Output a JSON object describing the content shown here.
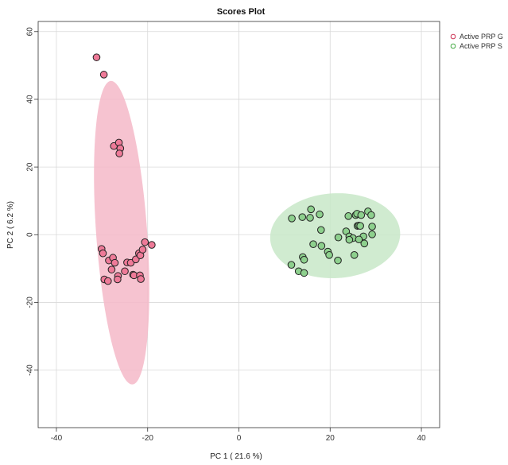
{
  "chart_data": {
    "type": "scatter",
    "title": "Scores Plot",
    "xlabel": "PC 1 ( 21.6 %)",
    "ylabel": "PC 2 ( 6.2 %)",
    "xlim": [
      -44,
      44
    ],
    "ylim": [
      -57,
      63
    ],
    "x_ticks": [
      -40,
      -20,
      0,
      20,
      40
    ],
    "y_ticks": [
      -40,
      -20,
      0,
      20,
      40,
      60
    ],
    "grid": true,
    "legend_position": "top-right",
    "series": [
      {
        "name": "Active PRP G",
        "fill_color": "#ee7a98",
        "edge_color": "#cc3355",
        "ellipse_color": "#f4b8c8",
        "ellipse": {
          "center": [
            -25.7,
            0.6
          ],
          "semi_axis_major": 44.9,
          "semi_axis_minor": 5.6,
          "angle_deg": 93
        },
        "points": [
          {
            "x": -31.2,
            "y": 52.4
          },
          {
            "x": -29.6,
            "y": 47.3
          },
          {
            "x": -27.4,
            "y": 26.2
          },
          {
            "x": -26.3,
            "y": 27.2
          },
          {
            "x": -26.0,
            "y": 25.5
          },
          {
            "x": -26.2,
            "y": 24.0
          },
          {
            "x": -30.1,
            "y": -4.2
          },
          {
            "x": -29.8,
            "y": -5.5
          },
          {
            "x": -28.5,
            "y": -7.6
          },
          {
            "x": -27.6,
            "y": -6.8
          },
          {
            "x": -27.2,
            "y": -8.3
          },
          {
            "x": -27.9,
            "y": -10.3
          },
          {
            "x": -26.5,
            "y": -12.2
          },
          {
            "x": -26.6,
            "y": -13.2
          },
          {
            "x": -29.5,
            "y": -13.2
          },
          {
            "x": -28.7,
            "y": -13.7
          },
          {
            "x": -25.0,
            "y": -10.8
          },
          {
            "x": -24.5,
            "y": -8.2
          },
          {
            "x": -23.7,
            "y": -8.3
          },
          {
            "x": -23.2,
            "y": -11.8
          },
          {
            "x": -23.0,
            "y": -12.0
          },
          {
            "x": -22.6,
            "y": -7.3
          },
          {
            "x": -21.9,
            "y": -5.5
          },
          {
            "x": -21.6,
            "y": -6.1
          },
          {
            "x": -21.1,
            "y": -4.4
          },
          {
            "x": -20.6,
            "y": -2.2
          },
          {
            "x": -19.1,
            "y": -3.0
          },
          {
            "x": -21.7,
            "y": -12.0
          },
          {
            "x": -21.5,
            "y": -13.1
          }
        ]
      },
      {
        "name": "Active PRP S",
        "fill_color": "#8dd08d",
        "edge_color": "#44aa44",
        "ellipse_color": "#c8e8c8",
        "ellipse": {
          "center": [
            21.1,
            -0.3
          ],
          "semi_axis_major": 14.3,
          "semi_axis_minor": 12.5,
          "angle_deg": 10
        },
        "points": [
          {
            "x": 11.6,
            "y": 4.8
          },
          {
            "x": 13.9,
            "y": 5.2
          },
          {
            "x": 15.8,
            "y": 7.5
          },
          {
            "x": 15.6,
            "y": 5.0
          },
          {
            "x": 17.7,
            "y": 6.0
          },
          {
            "x": 16.3,
            "y": -2.8
          },
          {
            "x": 18.0,
            "y": 1.4
          },
          {
            "x": 18.1,
            "y": -3.3
          },
          {
            "x": 19.5,
            "y": -5.0
          },
          {
            "x": 19.8,
            "y": -6.0
          },
          {
            "x": 21.7,
            "y": -7.6
          },
          {
            "x": 21.8,
            "y": -0.8
          },
          {
            "x": 23.5,
            "y": 1.0
          },
          {
            "x": 24.2,
            "y": -0.5
          },
          {
            "x": 24.0,
            "y": 5.5
          },
          {
            "x": 25.0,
            "y": -1.0
          },
          {
            "x": 25.6,
            "y": 5.8
          },
          {
            "x": 25.9,
            "y": 6.2
          },
          {
            "x": 26.0,
            "y": 2.6
          },
          {
            "x": 26.3,
            "y": 2.7
          },
          {
            "x": 26.6,
            "y": 2.6
          },
          {
            "x": 26.8,
            "y": 5.8
          },
          {
            "x": 27.3,
            "y": -0.5
          },
          {
            "x": 27.5,
            "y": -2.6
          },
          {
            "x": 28.3,
            "y": 6.9
          },
          {
            "x": 29.0,
            "y": 5.8
          },
          {
            "x": 29.2,
            "y": 2.4
          },
          {
            "x": 29.2,
            "y": 0.1
          },
          {
            "x": 26.3,
            "y": -1.4
          },
          {
            "x": 25.3,
            "y": -6.0
          },
          {
            "x": 24.2,
            "y": -1.5
          },
          {
            "x": 14.0,
            "y": -6.6
          },
          {
            "x": 14.3,
            "y": -7.4
          },
          {
            "x": 11.5,
            "y": -8.9
          },
          {
            "x": 13.1,
            "y": -10.8
          },
          {
            "x": 14.3,
            "y": -11.3
          }
        ]
      }
    ]
  }
}
